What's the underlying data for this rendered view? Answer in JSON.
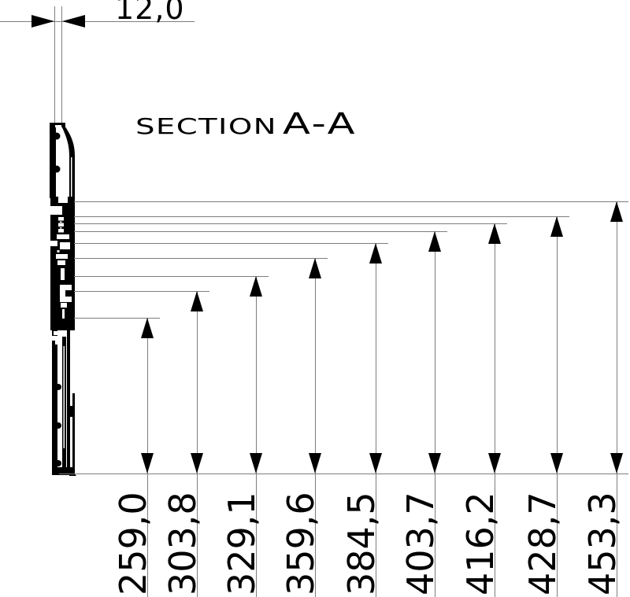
{
  "title": {
    "prefix": "SECTION",
    "section": "A-A"
  },
  "width_dimension": {
    "label": "12,0",
    "value": 12.0
  },
  "height_dimensions": [
    {
      "label": "259,0",
      "value": 259.0
    },
    {
      "label": "303,8",
      "value": 303.8
    },
    {
      "label": "329,1",
      "value": 329.1
    },
    {
      "label": "359,6",
      "value": 359.6
    },
    {
      "label": "384,5",
      "value": 384.5
    },
    {
      "label": "403,7",
      "value": 403.7
    },
    {
      "label": "416,2",
      "value": 416.2
    },
    {
      "label": "428,7",
      "value": 428.7
    },
    {
      "label": "453,3",
      "value": 453.3
    }
  ],
  "colors": {
    "ink": "#000000",
    "dimension_line": "#7d7d7d",
    "background": "#ffffff"
  }
}
